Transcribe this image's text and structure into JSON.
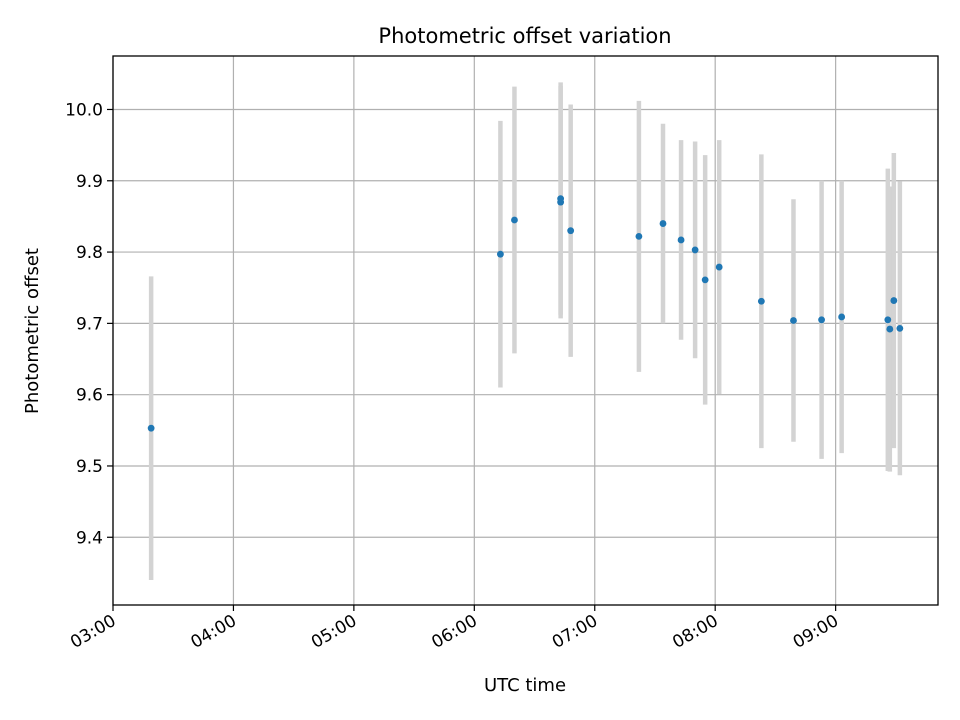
{
  "chart_data": {
    "type": "scatter",
    "title": "Photometric offset variation",
    "xlabel": "UTC time",
    "ylabel": "Photometric offset",
    "x_ticks": [
      "03:00",
      "04:00",
      "05:00",
      "06:00",
      "07:00",
      "08:00",
      "09:00"
    ],
    "y_ticks": [
      "9.4",
      "9.5",
      "9.6",
      "9.7",
      "9.8",
      "9.9",
      "10.0"
    ],
    "xlim": [
      "03:00",
      "09:51"
    ],
    "ylim": [
      9.305,
      10.075
    ],
    "grid": true,
    "errorbar_color": "#d3d3d3",
    "point_color": "#1f77b4",
    "points": [
      {
        "x": "03:19",
        "y": 9.553,
        "err": 0.213
      },
      {
        "x": "06:13",
        "y": 9.797,
        "err": 0.187
      },
      {
        "x": "06:20",
        "y": 9.845,
        "err": 0.187
      },
      {
        "x": "06:43",
        "y": 9.875,
        "err": 0.163
      },
      {
        "x": "06:43",
        "y": 9.87,
        "err": 0.163
      },
      {
        "x": "06:48",
        "y": 9.83,
        "err": 0.177
      },
      {
        "x": "07:22",
        "y": 9.822,
        "err": 0.19
      },
      {
        "x": "07:34",
        "y": 9.84,
        "err": 0.14
      },
      {
        "x": "07:43",
        "y": 9.817,
        "err": 0.14
      },
      {
        "x": "07:50",
        "y": 9.803,
        "err": 0.152
      },
      {
        "x": "07:55",
        "y": 9.761,
        "err": 0.175
      },
      {
        "x": "08:02",
        "y": 9.779,
        "err": 0.178
      },
      {
        "x": "08:23",
        "y": 9.731,
        "err": 0.206
      },
      {
        "x": "08:39",
        "y": 9.704,
        "err": 0.17
      },
      {
        "x": "08:53",
        "y": 9.705,
        "err": 0.195
      },
      {
        "x": "09:03",
        "y": 9.709,
        "err": 0.191
      },
      {
        "x": "09:26",
        "y": 9.705,
        "err": 0.212
      },
      {
        "x": "09:27",
        "y": 9.692,
        "err": 0.2
      },
      {
        "x": "09:29",
        "y": 9.732,
        "err": 0.207
      },
      {
        "x": "09:32",
        "y": 9.693,
        "err": 0.206
      }
    ]
  }
}
